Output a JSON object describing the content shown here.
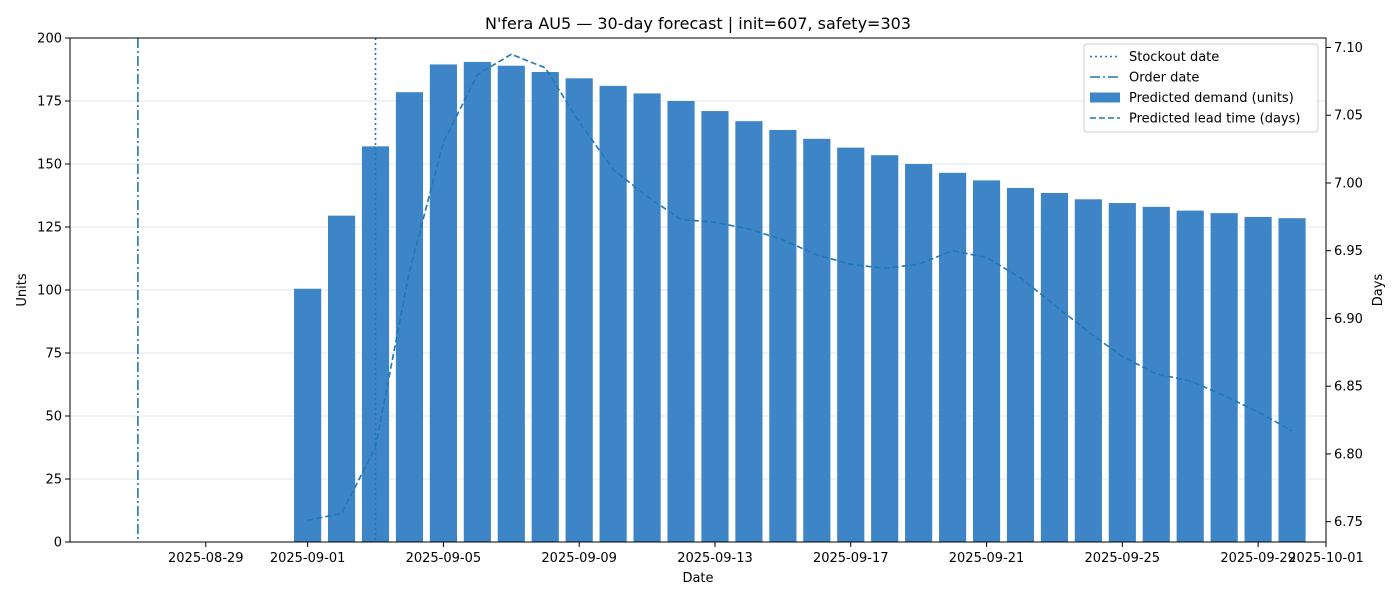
{
  "chart_data": {
    "type": "bar",
    "title": "N'fera AU5 — 30-day forecast | init=607, safety=303",
    "xlabel": "Date",
    "ylabel": "Units",
    "y2label": "Days",
    "ylim": [
      0,
      200
    ],
    "y2lim": [
      6.735,
      7.107
    ],
    "xlim": [
      "2025-08-25",
      "2025-10-01"
    ],
    "grid": "horizontal",
    "legend_position": "top-right",
    "colors": {
      "bar": "#3d85c6",
      "line": "#1f77b4"
    },
    "x_ticks": [
      "2025-08-29",
      "2025-09-01",
      "2025-09-05",
      "2025-09-09",
      "2025-09-13",
      "2025-09-17",
      "2025-09-21",
      "2025-09-25",
      "2025-09-29",
      "2025-10-01"
    ],
    "y_ticks": [
      0,
      25,
      50,
      75,
      100,
      125,
      150,
      175,
      200
    ],
    "y2_ticks": [
      6.75,
      6.8,
      6.85,
      6.9,
      6.95,
      7.0,
      7.05,
      7.1
    ],
    "dates": [
      "2025-09-01",
      "2025-09-02",
      "2025-09-03",
      "2025-09-04",
      "2025-09-05",
      "2025-09-06",
      "2025-09-07",
      "2025-09-08",
      "2025-09-09",
      "2025-09-10",
      "2025-09-11",
      "2025-09-12",
      "2025-09-13",
      "2025-09-14",
      "2025-09-15",
      "2025-09-16",
      "2025-09-17",
      "2025-09-18",
      "2025-09-19",
      "2025-09-20",
      "2025-09-21",
      "2025-09-22",
      "2025-09-23",
      "2025-09-24",
      "2025-09-25",
      "2025-09-26",
      "2025-09-27",
      "2025-09-28",
      "2025-09-29",
      "2025-09-30"
    ],
    "series": [
      {
        "name": "Predicted demand (units)",
        "type": "bar",
        "axis": "left",
        "values": [
          100.5,
          129.5,
          157,
          178.5,
          189.5,
          190.5,
          189,
          186.5,
          184,
          181,
          178,
          175,
          171,
          167,
          163.5,
          160,
          156.5,
          153.5,
          150,
          146.5,
          143.5,
          140.5,
          138.5,
          136,
          134.5,
          133,
          131.5,
          130.5,
          129,
          128.5
        ]
      },
      {
        "name": "Predicted lead time (days)",
        "type": "line",
        "style": "dashed",
        "axis": "right",
        "values": [
          6.751,
          6.756,
          6.805,
          6.935,
          7.03,
          7.08,
          7.095,
          7.085,
          7.045,
          7.01,
          6.99,
          6.973,
          6.971,
          6.966,
          6.958,
          6.947,
          6.94,
          6.937,
          6.94,
          6.95,
          6.945,
          6.93,
          6.91,
          6.89,
          6.872,
          6.859,
          6.854,
          6.843,
          6.831,
          6.817
        ]
      }
    ],
    "vlines": [
      {
        "name": "Stockout date",
        "date": "2025-09-03",
        "style": "dotted"
      },
      {
        "name": "Order date",
        "date": "2025-08-27",
        "style": "dashdot"
      }
    ],
    "legend": [
      "Stockout date",
      "Order date",
      "Predicted demand (units)",
      "Predicted lead time (days)"
    ]
  }
}
